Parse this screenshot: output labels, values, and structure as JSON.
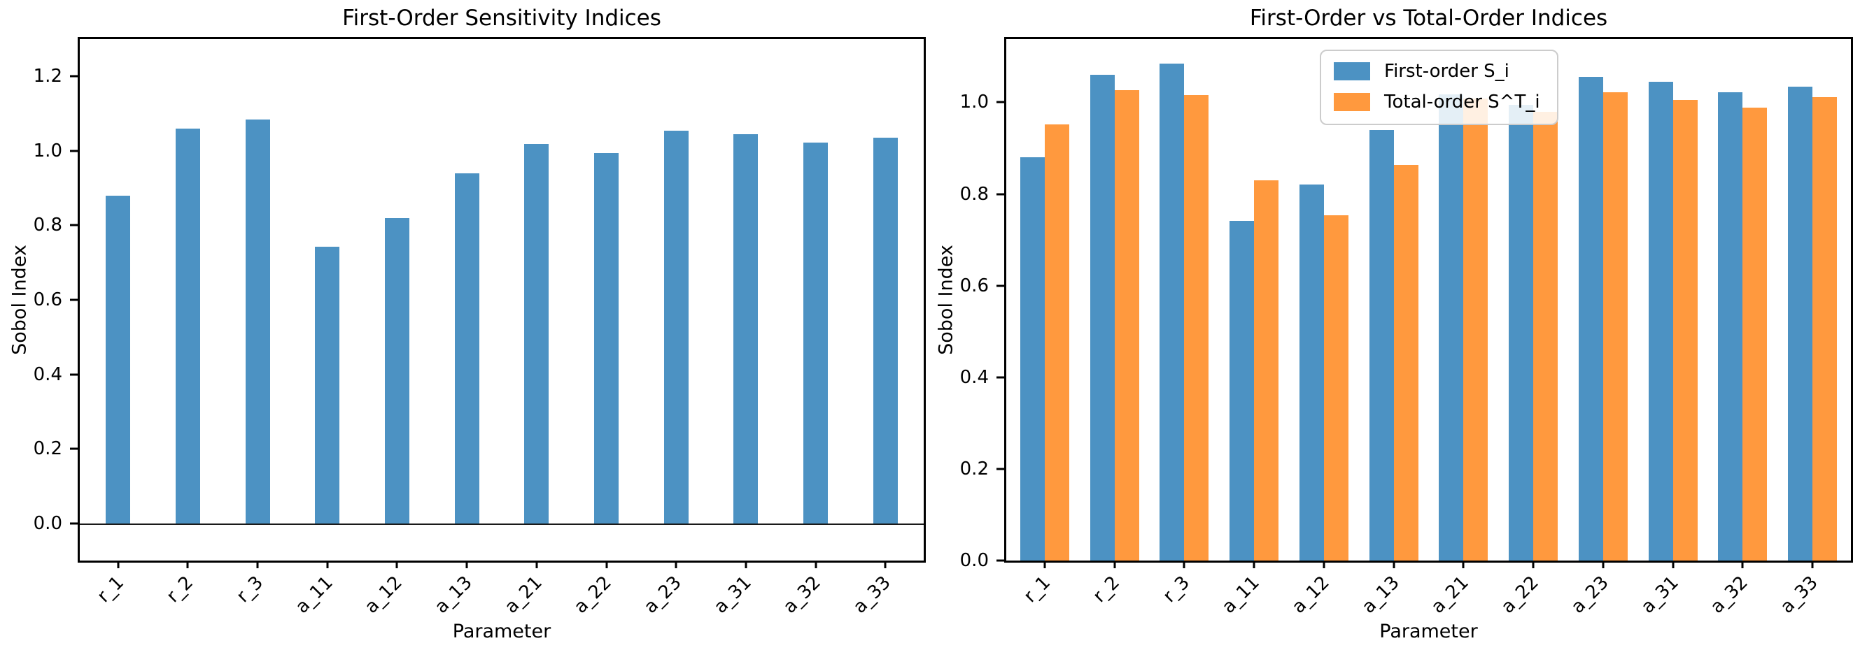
{
  "figure": {
    "background": "#ffffff"
  },
  "chart_data": [
    {
      "type": "bar",
      "title": "First-Order Sensitivity Indices",
      "xlabel": "Parameter",
      "ylabel": "Sobol Index",
      "categories": [
        "r_1",
        "r_2",
        "r_3",
        "a_11",
        "a_12",
        "a_13",
        "a_21",
        "a_22",
        "a_23",
        "a_31",
        "a_32",
        "a_33"
      ],
      "values": [
        0.88,
        1.06,
        1.084,
        0.742,
        0.82,
        0.94,
        1.018,
        0.995,
        1.055,
        1.045,
        1.022,
        1.035
      ],
      "bar_color": "#4C92C3",
      "ylim": [
        -0.1,
        1.3
      ],
      "yticks": [
        0.0,
        0.2,
        0.4,
        0.6,
        0.8,
        1.0,
        1.2
      ],
      "ytick_labels": [
        "0.0",
        "0.2",
        "0.4",
        "0.6",
        "0.8",
        "1.0",
        "1.2"
      ],
      "zero_line": true,
      "grid": false,
      "bar_width_fraction": 0.35
    },
    {
      "type": "bar",
      "title": "First-Order vs Total-Order Indices",
      "xlabel": "Parameter",
      "ylabel": "Sobol Index",
      "categories": [
        "r_1",
        "r_2",
        "r_3",
        "a_11",
        "a_12",
        "a_13",
        "a_21",
        "a_22",
        "a_23",
        "a_31",
        "a_32",
        "a_33"
      ],
      "series": [
        {
          "name": "First-order S_i",
          "color": "#4C92C3",
          "values": [
            0.88,
            1.06,
            1.084,
            0.742,
            0.82,
            0.94,
            1.018,
            0.995,
            1.055,
            1.045,
            1.022,
            1.035
          ]
        },
        {
          "name": "Total-order S^T_i",
          "color": "#FF993E",
          "values": [
            0.952,
            1.027,
            1.016,
            0.83,
            0.754,
            0.863,
            1.008,
            0.979,
            1.022,
            1.005,
            0.988,
            1.012
          ]
        }
      ],
      "ylim": [
        0,
        1.138
      ],
      "yticks": [
        0.0,
        0.2,
        0.4,
        0.6,
        0.8,
        1.0
      ],
      "ytick_labels": [
        "0.0",
        "0.2",
        "0.4",
        "0.6",
        "0.8",
        "1.0"
      ],
      "zero_line": false,
      "grid": false,
      "legend": {
        "position": "upper center",
        "entries": [
          "First-order S_i",
          "Total-order S^T_i"
        ]
      },
      "bar_width_fraction": 0.35
    }
  ]
}
